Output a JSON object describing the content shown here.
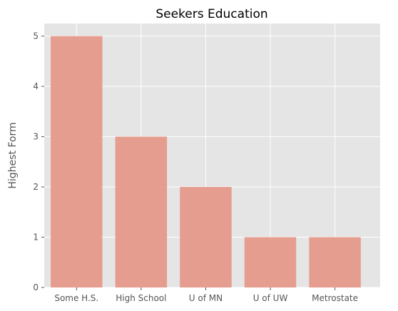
{
  "chart_data": {
    "type": "bar",
    "title": "Seekers Education",
    "xlabel": "",
    "ylabel": "Highest Form",
    "categories": [
      "Some H.S.",
      "High School",
      "U of MN",
      "U of UW",
      "Metrostate"
    ],
    "values": [
      5,
      3,
      2,
      1,
      1
    ],
    "ylim": [
      0,
      5.25
    ],
    "yticks": [
      "0",
      "1",
      "2",
      "3",
      "4",
      "5"
    ],
    "grid": true,
    "legend": "none",
    "colors": {
      "bar": "#e5998a",
      "plot_background": "#e5e5e5",
      "grid": "#ffffff",
      "text": "#555555"
    }
  }
}
